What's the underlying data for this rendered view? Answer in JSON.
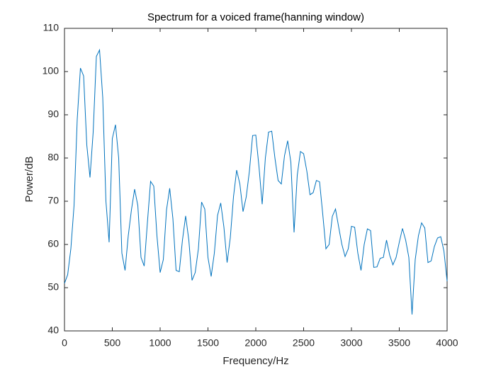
{
  "chart_data": {
    "type": "line",
    "title": "Spectrum for a voiced frame(hanning window)",
    "x_label": "Frequency/Hz",
    "y_label": "Power/dB",
    "xlim": [
      0,
      4000
    ],
    "xticks": [
      0,
      500,
      1000,
      1500,
      2000,
      2500,
      3000,
      3500,
      4000
    ],
    "ylim": [
      40,
      110
    ],
    "yticks": [
      40,
      50,
      60,
      70,
      80,
      90,
      100,
      110
    ],
    "x": [
      0,
      33.3,
      66.7,
      100,
      133.3,
      166.7,
      200,
      233.3,
      266.7,
      300,
      333.3,
      366.7,
      400,
      433.3,
      466.7,
      500,
      533.3,
      566.7,
      600,
      633.3,
      666.7,
      700,
      733.3,
      766.7,
      800,
      833.3,
      866.7,
      900,
      933.3,
      966.7,
      1000,
      1033.3,
      1066.7,
      1100,
      1133.3,
      1166.7,
      1200,
      1233.3,
      1266.7,
      1300,
      1333.3,
      1366.7,
      1400,
      1433.3,
      1466.7,
      1500,
      1533.3,
      1566.7,
      1600,
      1633.3,
      1666.7,
      1700,
      1733.3,
      1766.7,
      1800,
      1833.3,
      1866.7,
      1900,
      1933.3,
      1966.7,
      2000,
      2033.3,
      2066.7,
      2100,
      2133.3,
      2166.7,
      2200,
      2233.3,
      2266.7,
      2300,
      2333.3,
      2366.7,
      2400,
      2433.3,
      2466.7,
      2500,
      2533.3,
      2566.7,
      2600,
      2633.3,
      2666.7,
      2700,
      2733.3,
      2766.7,
      2800,
      2833.3,
      2866.7,
      2900,
      2933.3,
      2966.7,
      3000,
      3033.3,
      3066.7,
      3100,
      3133.3,
      3166.7,
      3200,
      3233.3,
      3266.7,
      3300,
      3333.3,
      3366.7,
      3400,
      3433.3,
      3466.7,
      3500,
      3533.3,
      3566.7,
      3600,
      3633.3,
      3666.7,
      3700,
      3733.3,
      3766.7,
      3800,
      3833.3,
      3866.7,
      3900,
      3933.3,
      3966.7,
      4000
    ],
    "series": [
      {
        "color": "#0072bd",
        "values": [
          51,
          53,
          59,
          69,
          89,
          100.8,
          99,
          83,
          75.5,
          86,
          103.5,
          105,
          94,
          70,
          60.5,
          84.5,
          87.7,
          80,
          58,
          54,
          62,
          68,
          72.8,
          69,
          57,
          55,
          65,
          74.6,
          73.5,
          62,
          53.5,
          56.5,
          68,
          73,
          66,
          54,
          53.7,
          61,
          66.6,
          61,
          51.7,
          53.5,
          59,
          69.8,
          68.2,
          57,
          52.6,
          58,
          66.7,
          69.6,
          64,
          55.8,
          61.5,
          71,
          77.2,
          74,
          67.6,
          71,
          77,
          85.2,
          85.3,
          78,
          69.3,
          80,
          86,
          86.2,
          80,
          74.8,
          74,
          80.5,
          84,
          79,
          62.8,
          76,
          81.5,
          81,
          77,
          71.5,
          72,
          74.8,
          74.5,
          67,
          59,
          60,
          66.5,
          68.2,
          64,
          60,
          57.2,
          59,
          64.2,
          64,
          58,
          54,
          60,
          63.6,
          63.2,
          54.7,
          54.8,
          56.8,
          57,
          61,
          57.5,
          55.3,
          57,
          60.5,
          63.7,
          61,
          57,
          43.8,
          56.5,
          62,
          65,
          63.8,
          55.8,
          56.2,
          59.5,
          61.5,
          61.8,
          58.5,
          51.5
        ]
      }
    ]
  }
}
